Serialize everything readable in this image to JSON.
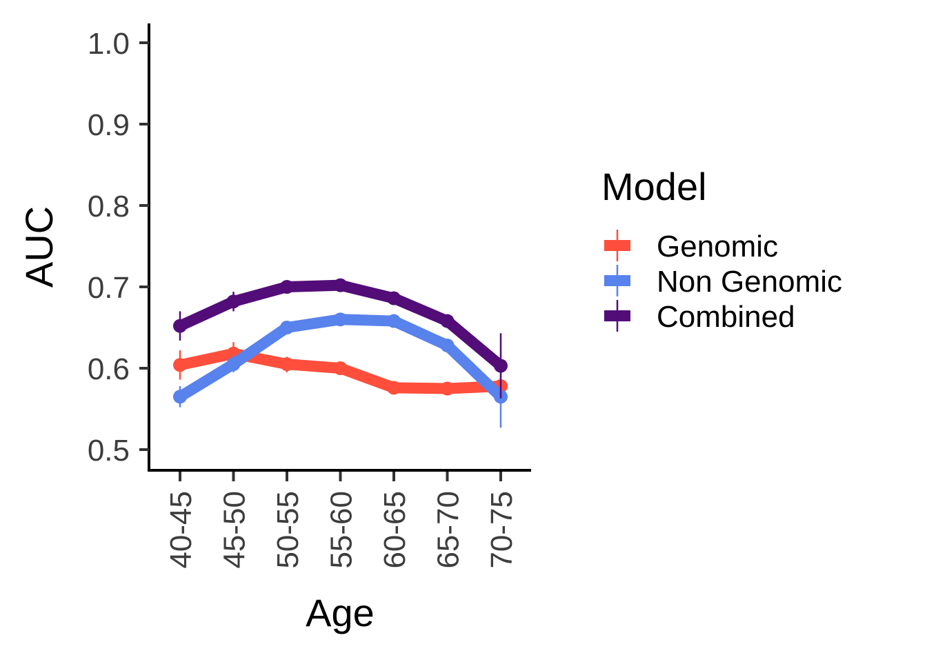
{
  "chart_data": {
    "type": "line",
    "xlabel": "Age",
    "ylabel": "AUC",
    "categories": [
      "40-45",
      "45-50",
      "50-55",
      "55-60",
      "60-65",
      "65-70",
      "70-75"
    ],
    "ylim": [
      0.475,
      1.025
    ],
    "yticks": [
      0.5,
      0.6,
      0.7,
      0.8,
      0.9,
      1.0
    ],
    "ytick_labels": [
      "0.5",
      "0.6",
      "0.7",
      "0.8",
      "0.9",
      "1.0"
    ],
    "grid": false,
    "legend": {
      "title": "Model",
      "position": "right"
    },
    "series": [
      {
        "name": "Genomic",
        "color": "#FF4E3C",
        "values": [
          0.604,
          0.618,
          0.605,
          0.6,
          0.576,
          0.575,
          0.578
        ],
        "err_low": [
          0.586,
          0.605,
          0.595,
          0.592,
          0.57,
          0.569,
          0.572
        ],
        "err_high": [
          0.622,
          0.632,
          0.614,
          0.608,
          0.582,
          0.581,
          0.584
        ]
      },
      {
        "name": "Non Genomic",
        "color": "#5882EC",
        "values": [
          0.565,
          0.605,
          0.65,
          0.66,
          0.658,
          0.628,
          0.565
        ],
        "err_low": [
          0.552,
          0.595,
          0.642,
          0.653,
          0.651,
          0.62,
          0.527
        ],
        "err_high": [
          0.578,
          0.615,
          0.658,
          0.667,
          0.665,
          0.636,
          0.603
        ]
      },
      {
        "name": "Combined",
        "color": "#520D78",
        "values": [
          0.652,
          0.682,
          0.7,
          0.702,
          0.686,
          0.658,
          0.603
        ],
        "err_low": [
          0.634,
          0.67,
          0.692,
          0.696,
          0.68,
          0.651,
          0.563
        ],
        "err_high": [
          0.67,
          0.694,
          0.708,
          0.708,
          0.692,
          0.665,
          0.643
        ]
      }
    ]
  }
}
